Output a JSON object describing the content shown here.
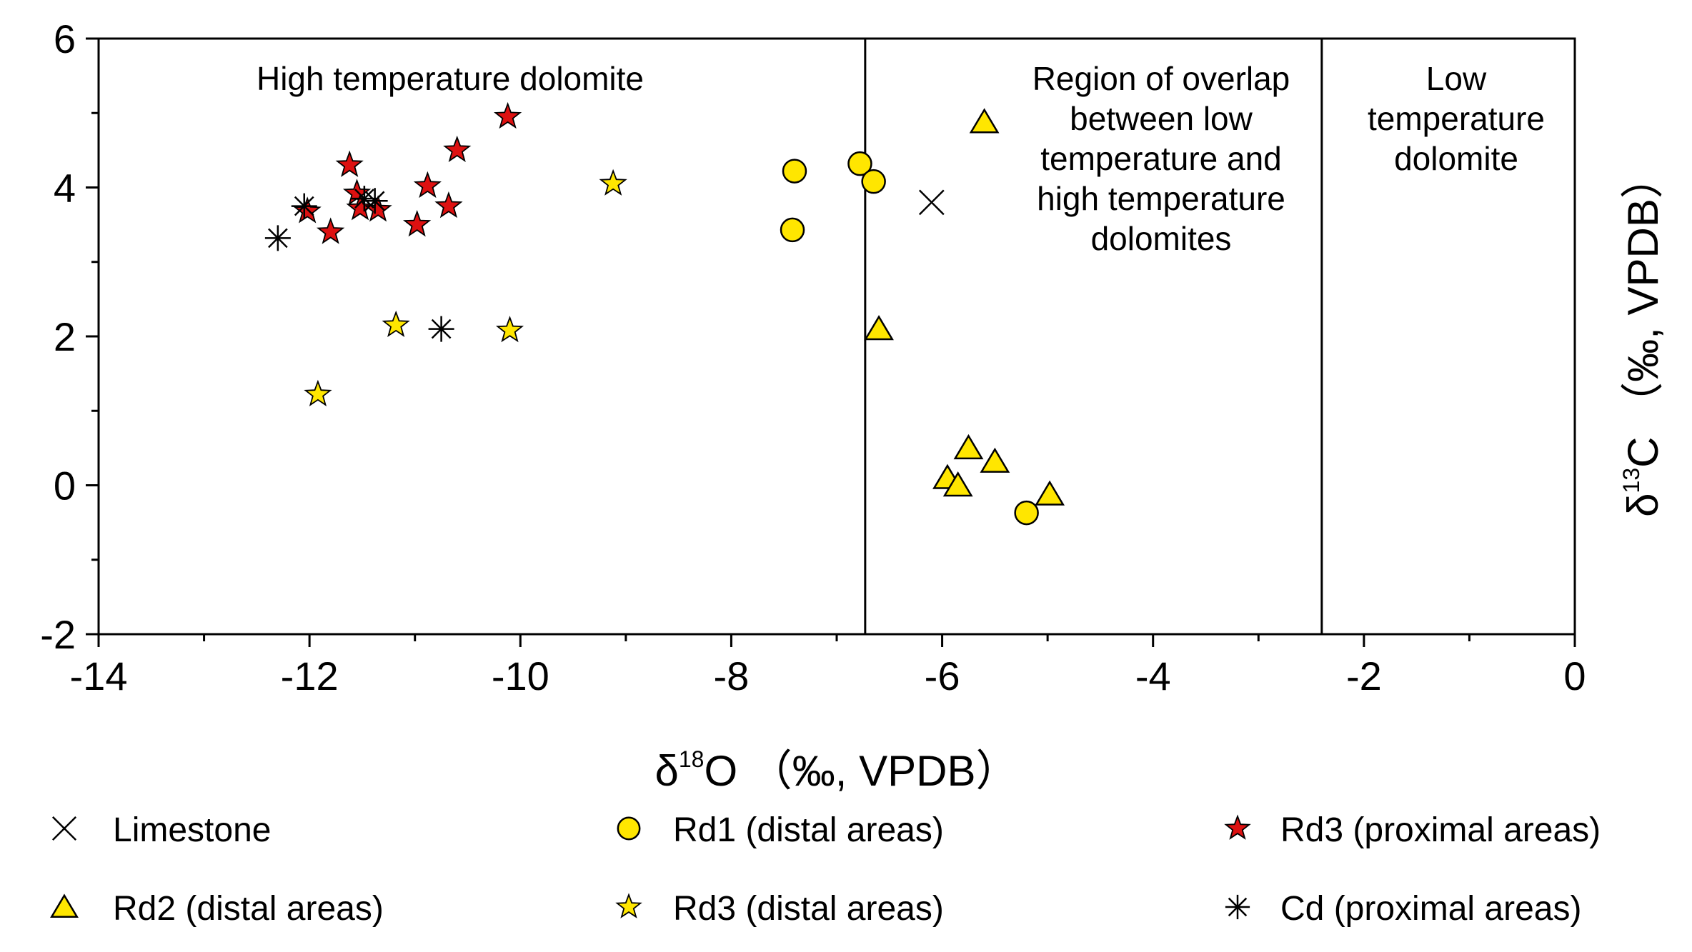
{
  "chart_data": {
    "type": "scatter",
    "xlabel": {
      "prefix": "δ",
      "sup": "18",
      "main": "O （‰, VPDB）"
    },
    "ylabel": {
      "prefix": "δ",
      "sup": "13",
      "main": "C （‰, VPDB）"
    },
    "xlim": [
      -14,
      0
    ],
    "ylim": [
      -2,
      6
    ],
    "xticks": [
      -14,
      -12,
      -10,
      -8,
      -6,
      -4,
      -2,
      0
    ],
    "yticks": [
      -2,
      0,
      2,
      4,
      6
    ],
    "grid": false,
    "dividers": [
      -6.73,
      -2.4
    ],
    "regions": [
      {
        "lines": [
          "High temperature dolomite"
        ]
      },
      {
        "lines": [
          "Region of overlap",
          "between low",
          "temperature and",
          "high temperature",
          "dolomites"
        ]
      },
      {
        "lines": [
          "Low",
          "temperature",
          "dolomite"
        ]
      }
    ],
    "series": [
      {
        "name": "Limestone",
        "marker": "x",
        "color": "#000000",
        "points": [
          [
            -6.1,
            3.8
          ]
        ]
      },
      {
        "name": "Rd1 (distal areas)",
        "marker": "circle",
        "color": "#ffe600",
        "points": [
          [
            -7.4,
            4.22
          ],
          [
            -6.78,
            4.32
          ],
          [
            -6.65,
            4.08
          ],
          [
            -7.42,
            3.43
          ],
          [
            -5.2,
            -0.37
          ]
        ]
      },
      {
        "name": "Rd3 (proximal areas)",
        "marker": "star",
        "color": "#dd1111",
        "points": [
          [
            -10.12,
            4.95
          ],
          [
            -10.6,
            4.5
          ],
          [
            -11.62,
            4.3
          ],
          [
            -10.88,
            4.02
          ],
          [
            -11.55,
            3.92
          ],
          [
            -11.52,
            3.72
          ],
          [
            -11.35,
            3.7
          ],
          [
            -10.68,
            3.75
          ],
          [
            -12.02,
            3.68
          ],
          [
            -11.8,
            3.4
          ],
          [
            -10.98,
            3.5
          ]
        ]
      },
      {
        "name": "Rd2 (distal areas)",
        "marker": "triangle",
        "color": "#ffe600",
        "points": [
          [
            -6.6,
            2.1
          ],
          [
            -5.75,
            0.5
          ],
          [
            -5.5,
            0.32
          ],
          [
            -5.95,
            0.1
          ],
          [
            -5.85,
            0.0
          ],
          [
            -4.98,
            -0.12
          ]
        ]
      },
      {
        "name": "Rd3 (distal areas)",
        "marker": "star",
        "color": "#ffe600",
        "points": [
          [
            -9.12,
            4.05
          ],
          [
            -11.18,
            2.15
          ],
          [
            -10.1,
            2.08
          ],
          [
            -11.92,
            1.22
          ]
        ]
      },
      {
        "name": "Cd (proximal areas)",
        "marker": "asterisk",
        "color": "#000000",
        "points": [
          [
            -12.3,
            3.32
          ],
          [
            -12.05,
            3.75
          ],
          [
            -11.48,
            3.85
          ],
          [
            -11.38,
            3.82
          ],
          [
            -10.75,
            2.1
          ]
        ]
      }
    ],
    "annotation_marker": {
      "marker": "triangle",
      "color": "#ffe600",
      "x": -5.6,
      "y": 4.88
    }
  }
}
